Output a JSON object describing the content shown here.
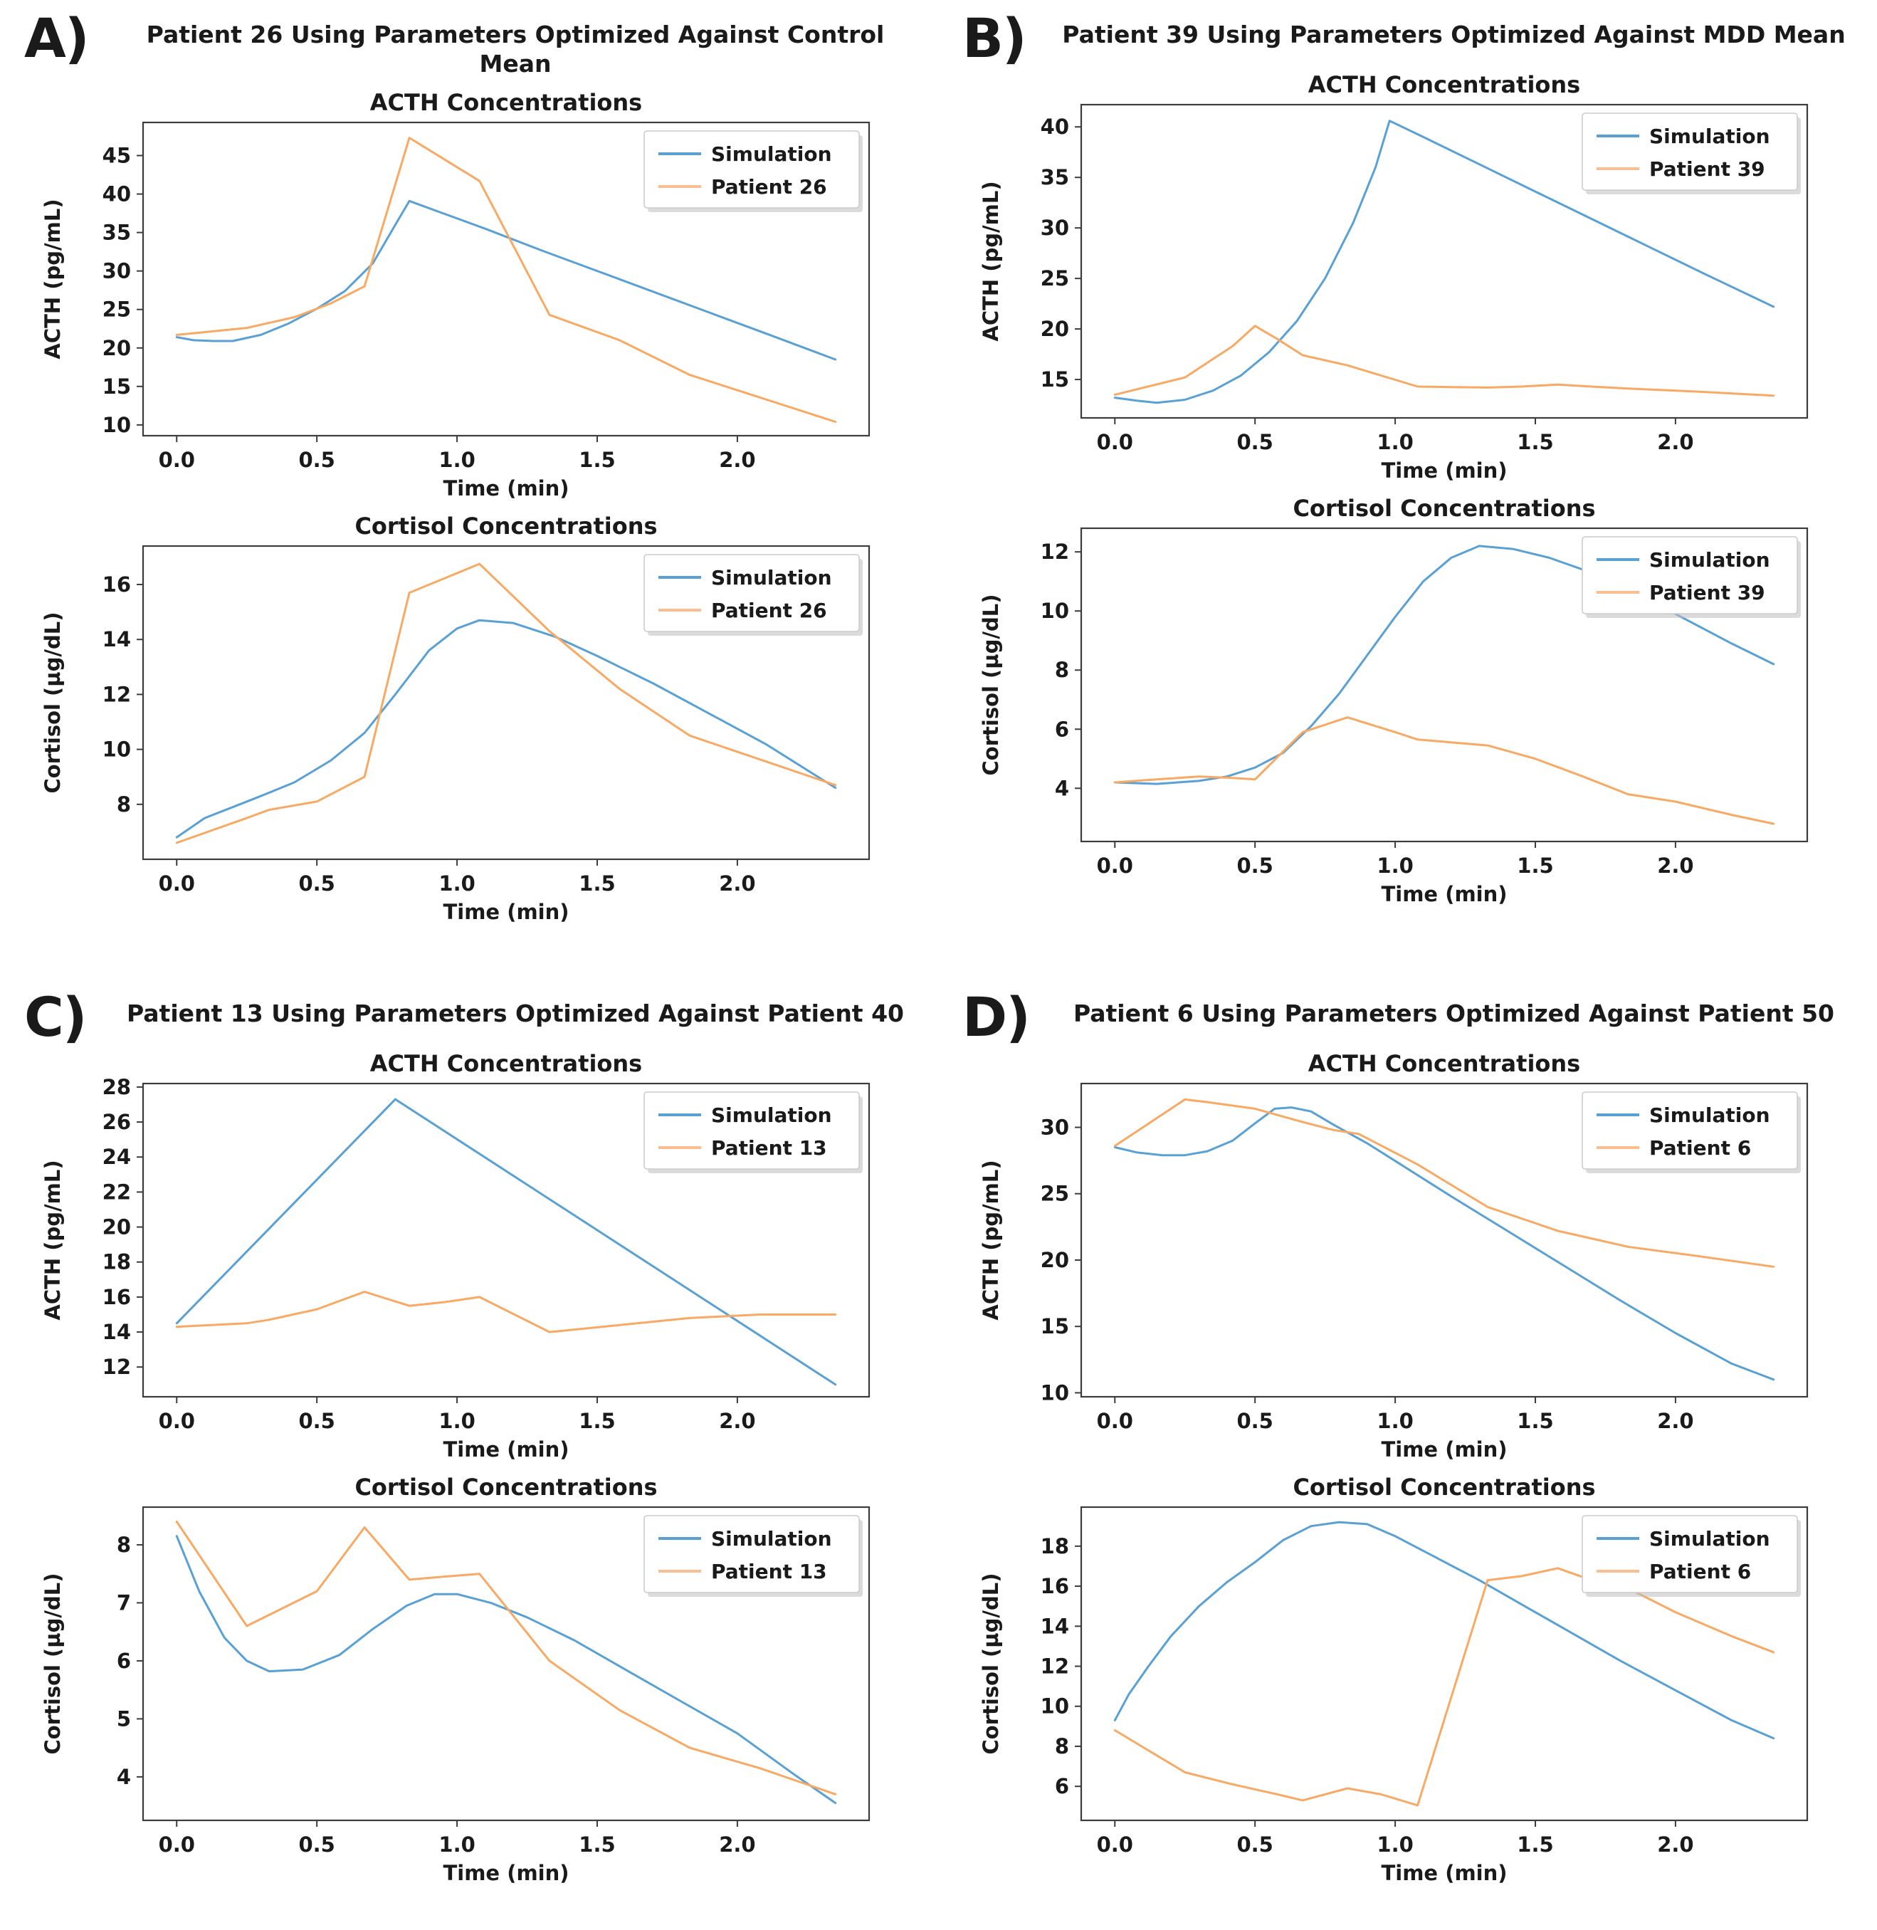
{
  "figure": {
    "colors": {
      "simulation": "#59a1d4",
      "patient": "#f8a963",
      "legend_patient_swatch": "#fbbe91",
      "text": "#1a1a1a",
      "spine": "#3c3c3c",
      "legend_border": "#cccccc",
      "legend_shadow": "#bdbdbd",
      "background": "#ffffff"
    },
    "panels": [
      {
        "letter": "A)",
        "title": "Patient 26 Using Parameters Optimized Against Control Mean",
        "chart_indices": [
          0,
          1
        ]
      },
      {
        "letter": "B)",
        "title": "Patient 39 Using Parameters Optimized Against MDD Mean",
        "chart_indices": [
          2,
          3
        ]
      },
      {
        "letter": "C)",
        "title": "Patient 13 Using Parameters Optimized Against Patient 40",
        "chart_indices": [
          4,
          5
        ]
      },
      {
        "letter": "D)",
        "title": "Patient 6 Using Parameters Optimized Against Patient 50",
        "chart_indices": [
          6,
          7
        ]
      }
    ]
  },
  "chart_data": [
    {
      "type": "line",
      "panel": "A",
      "title": "ACTH Concentrations",
      "xlabel": "Time (min)",
      "ylabel": "ACTH (pg/mL)",
      "xlim": [
        -0.12,
        2.47
      ],
      "ylim": [
        8.6,
        49.3
      ],
      "xticks": [
        "0.0",
        "0.5",
        "1.0",
        "1.5",
        "2.0"
      ],
      "yticks": [
        10,
        15,
        20,
        25,
        30,
        35,
        40,
        45
      ],
      "grid": false,
      "legend_position": "upper right",
      "series": [
        {
          "name": "Simulation",
          "x": [
            0,
            0.06,
            0.13,
            0.2,
            0.3,
            0.4,
            0.5,
            0.6,
            0.7,
            0.78,
            0.83,
            0.95,
            1.1,
            1.3,
            1.5,
            1.7,
            1.9,
            2.1,
            2.35
          ],
          "y": [
            21.4,
            21.0,
            20.9,
            20.9,
            21.7,
            23.2,
            25.1,
            27.4,
            31.0,
            36.0,
            39.1,
            37.5,
            35.5,
            32.7,
            30.0,
            27.3,
            24.6,
            21.9,
            18.5
          ]
        },
        {
          "name": "Patient 26",
          "x": [
            0,
            0.25,
            0.42,
            0.55,
            0.67,
            0.83,
            1.08,
            1.33,
            1.58,
            1.83,
            2.35
          ],
          "y": [
            21.7,
            22.6,
            24.0,
            25.8,
            28.0,
            47.3,
            41.7,
            24.3,
            21.0,
            16.5,
            10.4
          ]
        }
      ]
    },
    {
      "type": "line",
      "panel": "A",
      "title": "Cortisol Concentrations",
      "xlabel": "Time (min)",
      "ylabel": "Cortisol (µg/dL)",
      "xlim": [
        -0.12,
        2.47
      ],
      "ylim": [
        6.0,
        17.4
      ],
      "xticks": [
        "0.0",
        "0.5",
        "1.0",
        "1.5",
        "2.0"
      ],
      "yticks": [
        8,
        10,
        12,
        14,
        16
      ],
      "grid": false,
      "legend_position": "upper right",
      "series": [
        {
          "name": "Simulation",
          "x": [
            0,
            0.1,
            0.2,
            0.3,
            0.42,
            0.55,
            0.67,
            0.78,
            0.9,
            1.0,
            1.08,
            1.2,
            1.35,
            1.5,
            1.7,
            1.9,
            2.1,
            2.35
          ],
          "y": [
            6.8,
            7.5,
            7.9,
            8.3,
            8.8,
            9.6,
            10.6,
            12.0,
            13.6,
            14.4,
            14.7,
            14.6,
            14.1,
            13.4,
            12.4,
            11.3,
            10.2,
            8.6
          ]
        },
        {
          "name": "Patient 26",
          "x": [
            0,
            0.25,
            0.33,
            0.5,
            0.67,
            0.83,
            1.08,
            1.33,
            1.58,
            1.83,
            2.35
          ],
          "y": [
            6.6,
            7.5,
            7.8,
            8.1,
            9.0,
            15.7,
            16.75,
            14.3,
            12.2,
            10.5,
            8.7
          ]
        }
      ]
    },
    {
      "type": "line",
      "panel": "B",
      "title": "ACTH Concentrations",
      "xlabel": "Time (min)",
      "ylabel": "ACTH (pg/mL)",
      "xlim": [
        -0.12,
        2.47
      ],
      "ylim": [
        11.2,
        42.2
      ],
      "xticks": [
        "0.0",
        "0.5",
        "1.0",
        "1.5",
        "2.0"
      ],
      "yticks": [
        15,
        20,
        25,
        30,
        35,
        40
      ],
      "grid": false,
      "legend_position": "upper right",
      "series": [
        {
          "name": "Simulation",
          "x": [
            0,
            0.08,
            0.15,
            0.25,
            0.35,
            0.45,
            0.55,
            0.65,
            0.75,
            0.85,
            0.93,
            0.98,
            1.1,
            1.3,
            1.5,
            1.7,
            1.9,
            2.1,
            2.35
          ],
          "y": [
            13.2,
            12.9,
            12.7,
            13.0,
            13.9,
            15.4,
            17.7,
            20.8,
            25.0,
            30.5,
            36.0,
            40.6,
            39.0,
            36.3,
            33.6,
            30.9,
            28.2,
            25.5,
            22.2
          ]
        },
        {
          "name": "Patient 39",
          "x": [
            0,
            0.25,
            0.42,
            0.5,
            0.58,
            0.67,
            0.83,
            1.08,
            1.33,
            1.45,
            1.58,
            1.7,
            1.83,
            2.08,
            2.35
          ],
          "y": [
            13.5,
            15.2,
            18.3,
            20.3,
            19.0,
            17.4,
            16.4,
            14.3,
            14.2,
            14.3,
            14.5,
            14.3,
            14.1,
            13.8,
            13.4
          ]
        }
      ]
    },
    {
      "type": "line",
      "panel": "B",
      "title": "Cortisol Concentrations",
      "xlabel": "Time (min)",
      "ylabel": "Cortisol (µg/dL)",
      "xlim": [
        -0.12,
        2.47
      ],
      "ylim": [
        2.2,
        12.8
      ],
      "xticks": [
        "0.0",
        "0.5",
        "1.0",
        "1.5",
        "2.0"
      ],
      "yticks": [
        4,
        6,
        8,
        10,
        12
      ],
      "grid": false,
      "legend_position": "upper right",
      "series": [
        {
          "name": "Simulation",
          "x": [
            0,
            0.15,
            0.3,
            0.4,
            0.5,
            0.6,
            0.7,
            0.8,
            0.9,
            1.0,
            1.1,
            1.2,
            1.3,
            1.42,
            1.55,
            1.7,
            1.85,
            2.0,
            2.2,
            2.35
          ],
          "y": [
            4.2,
            4.15,
            4.25,
            4.4,
            4.7,
            5.2,
            6.1,
            7.2,
            8.5,
            9.8,
            11.0,
            11.8,
            12.2,
            12.1,
            11.8,
            11.3,
            10.6,
            9.9,
            8.9,
            8.2
          ]
        },
        {
          "name": "Patient 39",
          "x": [
            0,
            0.15,
            0.3,
            0.42,
            0.5,
            0.67,
            0.83,
            1.0,
            1.08,
            1.33,
            1.5,
            1.67,
            1.83,
            2.0,
            2.2,
            2.35
          ],
          "y": [
            4.2,
            4.3,
            4.4,
            4.35,
            4.3,
            5.9,
            6.4,
            5.9,
            5.65,
            5.45,
            5.0,
            4.4,
            3.8,
            3.55,
            3.1,
            2.8
          ]
        }
      ]
    },
    {
      "type": "line",
      "panel": "C",
      "title": "ACTH Concentrations",
      "xlabel": "Time (min)",
      "ylabel": "ACTH (pg/mL)",
      "xlim": [
        -0.12,
        2.47
      ],
      "ylim": [
        10.3,
        28.2
      ],
      "xticks": [
        "0.0",
        "0.5",
        "1.0",
        "1.5",
        "2.0"
      ],
      "yticks": [
        12,
        14,
        16,
        18,
        20,
        22,
        24,
        26,
        28
      ],
      "grid": false,
      "legend_position": "upper right",
      "series": [
        {
          "name": "Simulation",
          "x": [
            0,
            0.78,
            2.35
          ],
          "y": [
            14.5,
            27.3,
            11.0
          ]
        },
        {
          "name": "Patient 13",
          "x": [
            0,
            0.25,
            0.33,
            0.5,
            0.67,
            0.83,
            0.95,
            1.08,
            1.33,
            1.58,
            1.83,
            2.08,
            2.35
          ],
          "y": [
            14.3,
            14.5,
            14.7,
            15.3,
            16.3,
            15.5,
            15.7,
            16.0,
            14.0,
            14.4,
            14.8,
            15.0,
            15.0
          ]
        }
      ]
    },
    {
      "type": "line",
      "panel": "C",
      "title": "Cortisol Concentrations",
      "xlabel": "Time (min)",
      "ylabel": "Cortisol (µg/dL)",
      "xlim": [
        -0.12,
        2.47
      ],
      "ylim": [
        3.25,
        8.65
      ],
      "xticks": [
        "0.0",
        "0.5",
        "1.0",
        "1.5",
        "2.0"
      ],
      "yticks": [
        4,
        5,
        6,
        7,
        8
      ],
      "grid": false,
      "legend_position": "upper right",
      "series": [
        {
          "name": "Simulation",
          "x": [
            0,
            0.08,
            0.17,
            0.25,
            0.33,
            0.45,
            0.58,
            0.7,
            0.82,
            0.92,
            1.0,
            1.12,
            1.25,
            1.42,
            1.6,
            1.8,
            2.0,
            2.2,
            2.35
          ],
          "y": [
            8.15,
            7.2,
            6.4,
            6.0,
            5.82,
            5.85,
            6.1,
            6.55,
            6.95,
            7.15,
            7.15,
            7.0,
            6.75,
            6.35,
            5.85,
            5.3,
            4.75,
            4.05,
            3.55
          ]
        },
        {
          "name": "Patient 13",
          "x": [
            0,
            0.25,
            0.5,
            0.67,
            0.83,
            0.95,
            1.08,
            1.33,
            1.58,
            1.83,
            2.08,
            2.35
          ],
          "y": [
            8.4,
            6.6,
            7.2,
            8.3,
            7.4,
            7.45,
            7.5,
            6.0,
            5.15,
            4.5,
            4.15,
            3.7
          ]
        }
      ]
    },
    {
      "type": "line",
      "panel": "D",
      "title": "ACTH Concentrations",
      "xlabel": "Time (min)",
      "ylabel": "ACTH (pg/mL)",
      "xlim": [
        -0.12,
        2.47
      ],
      "ylim": [
        9.7,
        33.3
      ],
      "xticks": [
        "0.0",
        "0.5",
        "1.0",
        "1.5",
        "2.0"
      ],
      "yticks": [
        10,
        15,
        20,
        25,
        30
      ],
      "grid": false,
      "legend_position": "upper right",
      "series": [
        {
          "name": "Simulation",
          "x": [
            0,
            0.08,
            0.17,
            0.25,
            0.33,
            0.42,
            0.5,
            0.57,
            0.63,
            0.7,
            0.78,
            0.9,
            1.05,
            1.2,
            1.4,
            1.6,
            1.8,
            2.0,
            2.2,
            2.35
          ],
          "y": [
            28.5,
            28.1,
            27.9,
            27.9,
            28.2,
            29.0,
            30.3,
            31.4,
            31.5,
            31.2,
            30.2,
            28.8,
            26.8,
            24.8,
            22.2,
            19.6,
            17.0,
            14.5,
            12.2,
            11.0
          ]
        },
        {
          "name": "Patient 6",
          "x": [
            0,
            0.25,
            0.33,
            0.5,
            0.67,
            0.78,
            0.87,
            1.08,
            1.33,
            1.58,
            1.83,
            2.08,
            2.35
          ],
          "y": [
            28.6,
            32.1,
            31.9,
            31.4,
            30.4,
            29.8,
            29.5,
            27.2,
            24.0,
            22.2,
            21.0,
            20.3,
            19.5
          ]
        }
      ]
    },
    {
      "type": "line",
      "panel": "D",
      "title": "Cortisol Concentrations",
      "xlabel": "Time (min)",
      "ylabel": "Cortisol (µg/dL)",
      "xlim": [
        -0.12,
        2.47
      ],
      "ylim": [
        4.3,
        19.95
      ],
      "xticks": [
        "0.0",
        "0.5",
        "1.0",
        "1.5",
        "2.0"
      ],
      "yticks": [
        6,
        8,
        10,
        12,
        14,
        16,
        18
      ],
      "grid": false,
      "legend_position": "upper right",
      "series": [
        {
          "name": "Simulation",
          "x": [
            0,
            0.05,
            0.12,
            0.2,
            0.3,
            0.4,
            0.5,
            0.6,
            0.7,
            0.8,
            0.9,
            1.0,
            1.15,
            1.3,
            1.45,
            1.6,
            1.8,
            2.0,
            2.2,
            2.35
          ],
          "y": [
            9.3,
            10.6,
            12.0,
            13.5,
            15.0,
            16.2,
            17.2,
            18.3,
            19.0,
            19.2,
            19.1,
            18.5,
            17.4,
            16.3,
            15.1,
            13.9,
            12.3,
            10.8,
            9.3,
            8.4
          ]
        },
        {
          "name": "Patient 6",
          "x": [
            0,
            0.25,
            0.42,
            0.58,
            0.67,
            0.83,
            0.95,
            1.08,
            1.33,
            1.45,
            1.58,
            1.7,
            1.83,
            2.0,
            2.2,
            2.35
          ],
          "y": [
            8.8,
            6.7,
            6.1,
            5.6,
            5.3,
            5.9,
            5.6,
            5.05,
            16.3,
            16.5,
            16.9,
            16.3,
            15.9,
            14.7,
            13.5,
            12.7
          ]
        }
      ]
    }
  ]
}
